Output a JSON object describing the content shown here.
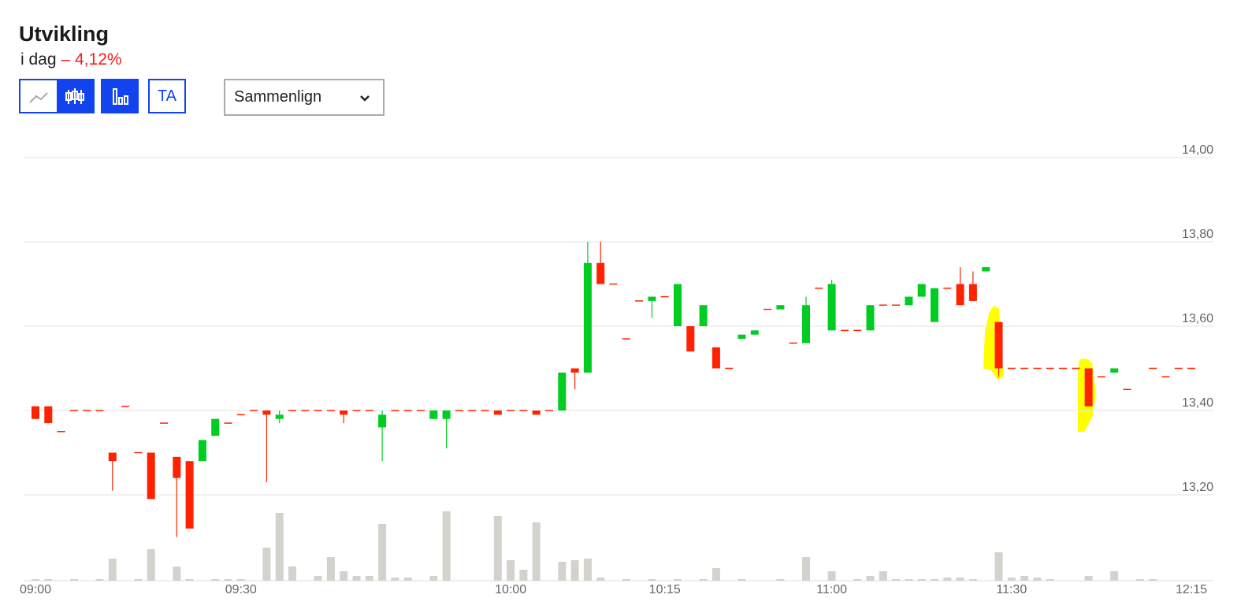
{
  "header": {
    "title": "Utvikling",
    "period": "i dag",
    "change": "– 4,12%"
  },
  "controls": {
    "ta_button": "TA",
    "compare": "Sammenlign"
  },
  "chart_data": {
    "type": "candlestick",
    "up_color": "#00cc22",
    "down_color": "#ff2200",
    "flat_color": "#ff2200",
    "volume_color": "#d4d2cc",
    "grid": true,
    "ylim": [
      13.0,
      14.0
    ],
    "yticks": [
      {
        "value": 14.0,
        "label": "14,00"
      },
      {
        "value": 13.8,
        "label": "13,80"
      },
      {
        "value": 13.6,
        "label": "13,60"
      },
      {
        "value": 13.4,
        "label": "13,40"
      },
      {
        "value": 13.2,
        "label": "13,20"
      }
    ],
    "vlim": [
      0,
      100
    ],
    "categories": [
      "09:00",
      null,
      null,
      null,
      null,
      null,
      null,
      null,
      null,
      null,
      null,
      null,
      null,
      null,
      null,
      null,
      "09:30",
      null,
      null,
      null,
      null,
      null,
      null,
      null,
      null,
      null,
      null,
      null,
      null,
      null,
      null,
      null,
      null,
      null,
      null,
      null,
      null,
      "10:00",
      null,
      null,
      null,
      null,
      null,
      null,
      null,
      null,
      null,
      null,
      null,
      "10:15",
      null,
      null,
      null,
      null,
      null,
      null,
      null,
      null,
      null,
      null,
      null,
      null,
      "11:00",
      null,
      null,
      null,
      null,
      null,
      null,
      null,
      null,
      null,
      null,
      null,
      null,
      null,
      "11:30",
      null,
      null,
      null,
      null,
      null,
      null,
      null,
      null,
      null,
      null,
      null,
      null,
      null,
      "12:15"
    ],
    "ohlc": [
      [
        13.41,
        13.41,
        13.38,
        13.38
      ],
      [
        13.41,
        13.41,
        13.37,
        13.37
      ],
      [
        13.35,
        13.35,
        13.35,
        13.35
      ],
      [
        13.4,
        13.4,
        13.4,
        13.4
      ],
      [
        13.4,
        13.4,
        13.4,
        13.4
      ],
      [
        13.4,
        13.4,
        13.4,
        13.4
      ],
      [
        13.3,
        13.3,
        13.21,
        13.28
      ],
      [
        13.41,
        13.41,
        13.41,
        13.41
      ],
      [
        13.3,
        13.3,
        13.3,
        13.3
      ],
      [
        13.3,
        13.3,
        13.19,
        13.19
      ],
      [
        13.37,
        13.37,
        13.37,
        13.37
      ],
      [
        13.29,
        13.29,
        13.1,
        13.24
      ],
      [
        13.28,
        13.28,
        13.12,
        13.12
      ],
      [
        13.28,
        13.33,
        13.28,
        13.33
      ],
      [
        13.34,
        13.38,
        13.34,
        13.38
      ],
      [
        13.37,
        13.37,
        13.37,
        13.37
      ],
      [
        13.39,
        13.39,
        13.39,
        13.39
      ],
      [
        13.4,
        13.4,
        13.4,
        13.4
      ],
      [
        13.4,
        13.4,
        13.23,
        13.39
      ],
      [
        13.38,
        13.4,
        13.37,
        13.39
      ],
      [
        13.4,
        13.4,
        13.4,
        13.4
      ],
      [
        13.4,
        13.4,
        13.4,
        13.4
      ],
      [
        13.4,
        13.4,
        13.4,
        13.4
      ],
      [
        13.4,
        13.4,
        13.4,
        13.4
      ],
      [
        13.4,
        13.4,
        13.37,
        13.39
      ],
      [
        13.4,
        13.4,
        13.4,
        13.4
      ],
      [
        13.4,
        13.4,
        13.4,
        13.4
      ],
      [
        13.36,
        13.4,
        13.28,
        13.39
      ],
      [
        13.4,
        13.4,
        13.4,
        13.4
      ],
      [
        13.4,
        13.4,
        13.4,
        13.4
      ],
      [
        13.4,
        13.4,
        13.4,
        13.4
      ],
      [
        13.38,
        13.4,
        13.38,
        13.4
      ],
      [
        13.38,
        13.4,
        13.31,
        13.4
      ],
      [
        13.4,
        13.4,
        13.4,
        13.4
      ],
      [
        13.4,
        13.4,
        13.4,
        13.4
      ],
      [
        13.4,
        13.4,
        13.4,
        13.4
      ],
      [
        13.4,
        13.4,
        13.39,
        13.39
      ],
      [
        13.4,
        13.4,
        13.4,
        13.4
      ],
      [
        13.4,
        13.4,
        13.4,
        13.4
      ],
      [
        13.4,
        13.4,
        13.39,
        13.39
      ],
      [
        13.4,
        13.4,
        13.4,
        13.4
      ],
      [
        13.4,
        13.49,
        13.4,
        13.49
      ],
      [
        13.5,
        13.5,
        13.45,
        13.49
      ],
      [
        13.49,
        13.8,
        13.49,
        13.75
      ],
      [
        13.75,
        13.8,
        13.7,
        13.7
      ],
      [
        13.7,
        13.7,
        13.7,
        13.7
      ],
      [
        13.57,
        13.57,
        13.57,
        13.57
      ],
      [
        13.66,
        13.66,
        13.66,
        13.66
      ],
      [
        13.66,
        13.67,
        13.62,
        13.67
      ],
      [
        13.67,
        13.67,
        13.67,
        13.67
      ],
      [
        13.6,
        13.7,
        13.6,
        13.7
      ],
      [
        13.6,
        13.6,
        13.54,
        13.54
      ],
      [
        13.6,
        13.65,
        13.6,
        13.65
      ],
      [
        13.55,
        13.55,
        13.5,
        13.5
      ],
      [
        13.5,
        13.5,
        13.5,
        13.5
      ],
      [
        13.57,
        13.58,
        13.57,
        13.58
      ],
      [
        13.58,
        13.59,
        13.58,
        13.59
      ],
      [
        13.64,
        13.64,
        13.64,
        13.64
      ],
      [
        13.64,
        13.65,
        13.64,
        13.65
      ],
      [
        13.56,
        13.56,
        13.56,
        13.56
      ],
      [
        13.56,
        13.67,
        13.56,
        13.65
      ],
      [
        13.69,
        13.69,
        13.69,
        13.69
      ],
      [
        13.59,
        13.71,
        13.59,
        13.7
      ],
      [
        13.59,
        13.59,
        13.59,
        13.59
      ],
      [
        13.59,
        13.59,
        13.59,
        13.59
      ],
      [
        13.59,
        13.65,
        13.59,
        13.65
      ],
      [
        13.65,
        13.65,
        13.65,
        13.65
      ],
      [
        13.65,
        13.65,
        13.65,
        13.65
      ],
      [
        13.65,
        13.67,
        13.65,
        13.67
      ],
      [
        13.67,
        13.7,
        13.67,
        13.7
      ],
      [
        13.61,
        13.69,
        13.61,
        13.69
      ],
      [
        13.69,
        13.69,
        13.69,
        13.69
      ],
      [
        13.7,
        13.74,
        13.65,
        13.65
      ],
      [
        13.7,
        13.73,
        13.66,
        13.66
      ],
      [
        13.73,
        13.74,
        13.73,
        13.74
      ],
      [
        13.61,
        13.61,
        13.48,
        13.5
      ],
      [
        13.5,
        13.5,
        13.5,
        13.5
      ],
      [
        13.5,
        13.5,
        13.5,
        13.5
      ],
      [
        13.5,
        13.5,
        13.5,
        13.5
      ],
      [
        13.5,
        13.5,
        13.5,
        13.5
      ],
      [
        13.5,
        13.5,
        13.5,
        13.5
      ],
      [
        13.5,
        13.5,
        13.5,
        13.5
      ],
      [
        13.5,
        13.5,
        13.41,
        13.41
      ],
      [
        13.48,
        13.48,
        13.48,
        13.48
      ],
      [
        13.49,
        13.5,
        13.49,
        13.5
      ],
      [
        13.45,
        13.45,
        13.45,
        13.45
      ],
      null,
      [
        13.5,
        13.5,
        13.5,
        13.5
      ],
      [
        13.48,
        13.48,
        13.48,
        13.48
      ],
      [
        13.5,
        13.5,
        13.5,
        13.5
      ],
      [
        13.5,
        13.5,
        13.5,
        13.5
      ]
    ],
    "volume": [
      2,
      2,
      null,
      2,
      null,
      2,
      28,
      null,
      2,
      40,
      null,
      18,
      2,
      null,
      2,
      2,
      2,
      null,
      42,
      86,
      18,
      null,
      6,
      30,
      12,
      6,
      6,
      72,
      4,
      4,
      null,
      6,
      88,
      null,
      null,
      null,
      82,
      26,
      14,
      74,
      null,
      24,
      26,
      28,
      4,
      null,
      2,
      null,
      2,
      null,
      2,
      null,
      2,
      16,
      null,
      2,
      null,
      null,
      2,
      null,
      30,
      null,
      12,
      null,
      2,
      6,
      12,
      2,
      2,
      2,
      2,
      4,
      4,
      2,
      null,
      36,
      4,
      6,
      4,
      2,
      null,
      null,
      6,
      null,
      12,
      null,
      2,
      2,
      null,
      null,
      null
    ]
  }
}
